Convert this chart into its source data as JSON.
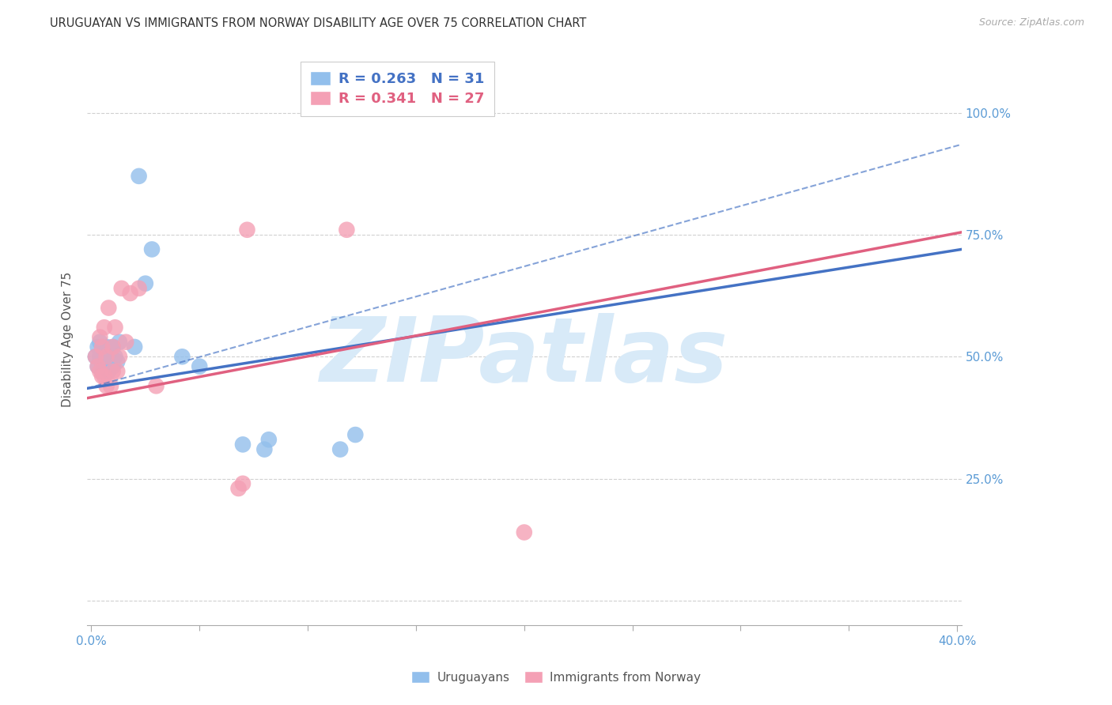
{
  "title": "URUGUAYAN VS IMMIGRANTS FROM NORWAY DISABILITY AGE OVER 75 CORRELATION CHART",
  "source": "Source: ZipAtlas.com",
  "ylabel_label": "Disability Age Over 75",
  "xlim": [
    -0.002,
    0.402
  ],
  "ylim": [
    -0.05,
    1.12
  ],
  "ytick_positions": [
    0.0,
    0.25,
    0.5,
    0.75,
    1.0
  ],
  "ytick_labels": [
    "",
    "25.0%",
    "50.0%",
    "75.0%",
    "100.0%"
  ],
  "xtick_major": [
    0.0,
    0.4
  ],
  "xtick_major_labels": [
    "0.0%",
    "40.0%"
  ],
  "xtick_minor": [
    0.05,
    0.1,
    0.15,
    0.2,
    0.25,
    0.3,
    0.35
  ],
  "blue_R": 0.263,
  "blue_N": 31,
  "pink_R": 0.341,
  "pink_N": 27,
  "blue_color": "#92BFEC",
  "pink_color": "#F4A0B5",
  "blue_line_color": "#4472C4",
  "pink_line_color": "#E06080",
  "axis_color": "#5B9BD5",
  "grid_color": "#D0D0D0",
  "background_color": "#FFFFFF",
  "watermark_color": "#D8EAF8",
  "blue_scatter_x": [
    0.002,
    0.003,
    0.003,
    0.004,
    0.004,
    0.005,
    0.005,
    0.006,
    0.006,
    0.007,
    0.007,
    0.008,
    0.008,
    0.009,
    0.009,
    0.01,
    0.01,
    0.011,
    0.012,
    0.013,
    0.02,
    0.022,
    0.025,
    0.028,
    0.042,
    0.05,
    0.07,
    0.08,
    0.082,
    0.115,
    0.122
  ],
  "blue_scatter_y": [
    0.5,
    0.48,
    0.52,
    0.5,
    0.53,
    0.47,
    0.5,
    0.48,
    0.51,
    0.48,
    0.52,
    0.47,
    0.5,
    0.48,
    0.5,
    0.48,
    0.52,
    0.5,
    0.49,
    0.53,
    0.52,
    0.87,
    0.65,
    0.72,
    0.5,
    0.48,
    0.32,
    0.31,
    0.33,
    0.31,
    0.34
  ],
  "pink_scatter_x": [
    0.002,
    0.003,
    0.004,
    0.004,
    0.005,
    0.005,
    0.006,
    0.006,
    0.007,
    0.007,
    0.008,
    0.009,
    0.01,
    0.01,
    0.011,
    0.012,
    0.013,
    0.014,
    0.016,
    0.018,
    0.022,
    0.03,
    0.068,
    0.07,
    0.072,
    0.118,
    0.2
  ],
  "pink_scatter_y": [
    0.5,
    0.48,
    0.47,
    0.54,
    0.46,
    0.52,
    0.46,
    0.56,
    0.44,
    0.5,
    0.6,
    0.44,
    0.47,
    0.52,
    0.56,
    0.47,
    0.5,
    0.64,
    0.53,
    0.63,
    0.64,
    0.44,
    0.23,
    0.24,
    0.76,
    0.76,
    0.14
  ],
  "blue_line_y0": 0.435,
  "blue_line_y1": 0.72,
  "pink_line_y0": 0.415,
  "pink_line_y1": 0.755,
  "dash_line_y0": 0.435,
  "dash_line_y1": 0.935
}
